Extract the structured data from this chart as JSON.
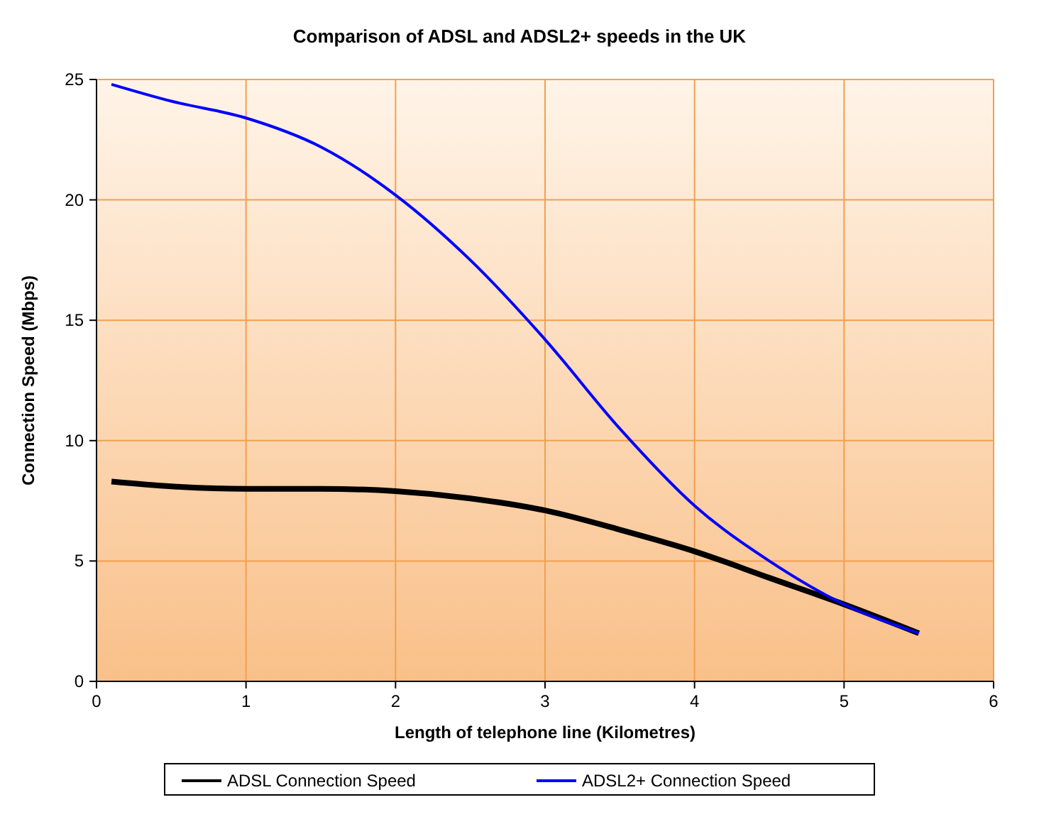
{
  "chart_data": {
    "type": "line",
    "title": "Comparison of ADSL and ADSL2+ speeds in the UK",
    "xlabel": "Length of telephone line (Kilometres)",
    "ylabel": "Connection Speed (Mbps)",
    "xlim": [
      0,
      6
    ],
    "xticks": [
      0,
      1,
      2,
      3,
      4,
      5,
      6
    ],
    "ylim": [
      0,
      25
    ],
    "yticks": [
      0,
      5,
      10,
      15,
      20,
      25
    ],
    "grid": true,
    "legend": "bottom",
    "marker": "none",
    "line_style": "solid",
    "series": [
      {
        "name": "ADSL Connection Speed",
        "color": "#000000",
        "x": [
          0.1,
          0.5,
          1,
          1.5,
          2,
          2.5,
          3,
          3.5,
          4,
          4.5,
          5,
          5.5
        ],
        "values": [
          8.3,
          8.1,
          8.0,
          8.0,
          7.9,
          7.6,
          7.1,
          6.3,
          5.4,
          4.3,
          3.2,
          2.0
        ]
      },
      {
        "name": "ADSL2+ Connection Speed",
        "color": "#0000ff",
        "x": [
          0.1,
          0.5,
          1,
          1.5,
          2,
          2.5,
          3,
          3.5,
          4,
          4.5,
          5,
          5.5
        ],
        "values": [
          24.8,
          24.1,
          23.4,
          22.2,
          20.2,
          17.5,
          14.2,
          10.5,
          7.3,
          5.0,
          3.2,
          2.0
        ]
      }
    ]
  }
}
